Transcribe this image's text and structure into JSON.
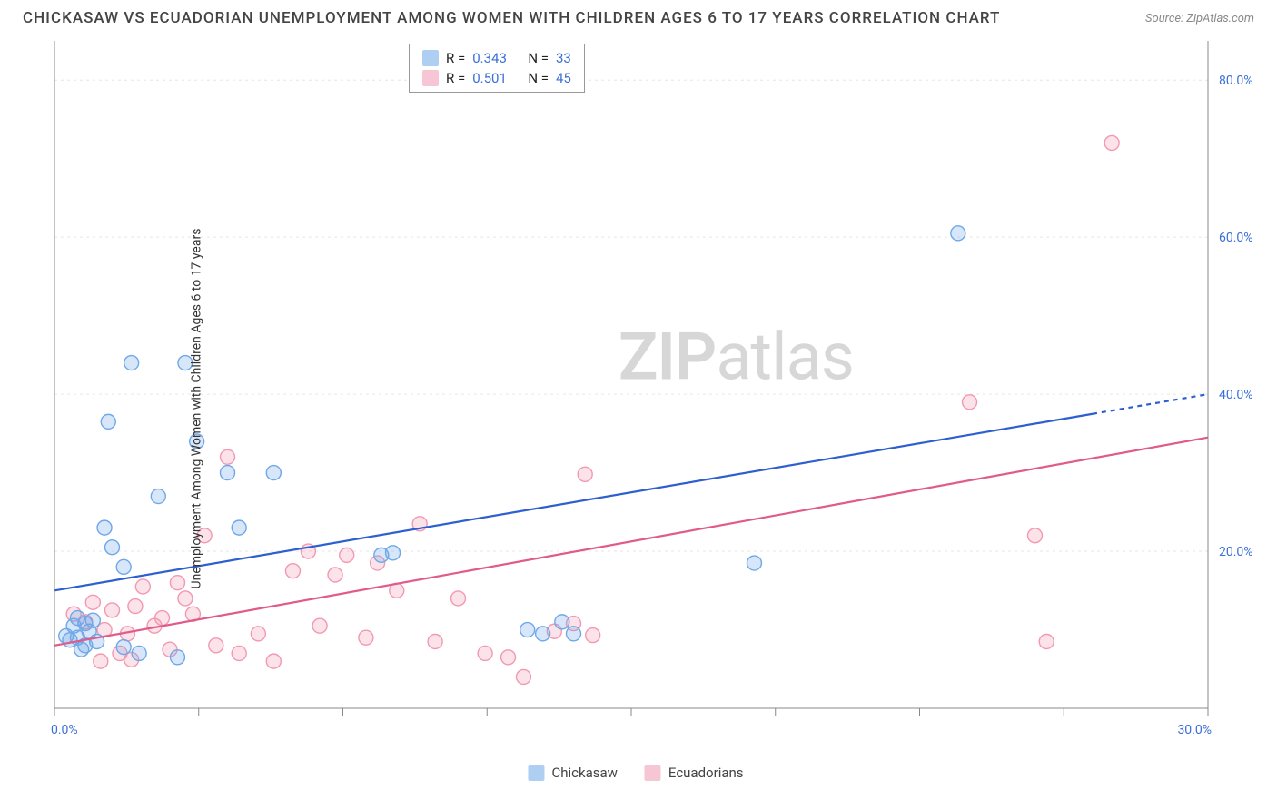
{
  "title": "CHICKASAW VS ECUADORIAN UNEMPLOYMENT AMONG WOMEN WITH CHILDREN AGES 6 TO 17 YEARS CORRELATION CHART",
  "source": "Source: ZipAtlas.com",
  "watermark_a": "ZIP",
  "watermark_b": "atlas",
  "yaxis_label": "Unemployment Among Women with Children Ages 6 to 17 years",
  "chart": {
    "type": "scatter",
    "background_color": "#ffffff",
    "xlim": [
      0,
      30
    ],
    "ylim": [
      0,
      85
    ],
    "xtick_labels": [
      "0.0%",
      "30.0%"
    ],
    "xtick_positions": [
      0,
      30
    ],
    "xtick_minor": [
      3.75,
      7.5,
      11.25,
      15,
      18.75,
      22.5,
      26.25
    ],
    "ytick_labels": [
      "20.0%",
      "40.0%",
      "60.0%",
      "80.0%"
    ],
    "ytick_positions": [
      20,
      40,
      60,
      80
    ],
    "grid_color": "#e6e6e6",
    "axis_color": "#888888",
    "tick_label_color": "#3a6fd8",
    "marker_radius": 8,
    "marker_stroke_width": 1.4,
    "fill_opacity": 0.28,
    "trend_line_width": 2.2,
    "series": [
      {
        "name": "Chickasaw",
        "color": "#6fa8e8",
        "trend_color": "#2d5fcf",
        "stats": {
          "r": "0.343",
          "n": "33"
        },
        "trend": {
          "x1": 0,
          "y1": 15,
          "x2": 27,
          "y2": 37.5,
          "dash_x1": 27,
          "dash_y1": 37.5,
          "dash_x2": 30,
          "dash_y2": 40
        },
        "points": [
          [
            0.3,
            9.2
          ],
          [
            0.4,
            8.7
          ],
          [
            0.5,
            10.5
          ],
          [
            0.6,
            9.0
          ],
          [
            0.7,
            7.5
          ],
          [
            0.8,
            10.8
          ],
          [
            0.8,
            8.0
          ],
          [
            0.9,
            9.8
          ],
          [
            1.0,
            11.2
          ],
          [
            1.1,
            8.5
          ],
          [
            1.3,
            23
          ],
          [
            1.4,
            36.5
          ],
          [
            1.5,
            20.5
          ],
          [
            1.8,
            18
          ],
          [
            2.0,
            44
          ],
          [
            2.2,
            7
          ],
          [
            2.7,
            27
          ],
          [
            3.2,
            6.5
          ],
          [
            3.4,
            44
          ],
          [
            3.7,
            34
          ],
          [
            4.5,
            30
          ],
          [
            4.8,
            23
          ],
          [
            5.7,
            30
          ],
          [
            8.5,
            19.5
          ],
          [
            8.8,
            19.8
          ],
          [
            12.3,
            10
          ],
          [
            12.7,
            9.5
          ],
          [
            13.2,
            11
          ],
          [
            13.5,
            9.5
          ],
          [
            18.2,
            18.5
          ],
          [
            23.5,
            60.5
          ],
          [
            1.8,
            7.8
          ],
          [
            0.6,
            11.5
          ]
        ]
      },
      {
        "name": "Ecuadorians",
        "color": "#f299b1",
        "trend_color": "#e05a8a",
        "stats": {
          "r": "0.501",
          "n": "45"
        },
        "trend": {
          "x1": 0,
          "y1": 8,
          "x2": 30,
          "y2": 34.5,
          "dash_x1": 30,
          "dash_y1": 34.5,
          "dash_x2": 30,
          "dash_y2": 34.5
        },
        "points": [
          [
            0.5,
            12
          ],
          [
            0.8,
            11
          ],
          [
            1.0,
            13.5
          ],
          [
            1.3,
            10
          ],
          [
            1.5,
            12.5
          ],
          [
            1.7,
            7
          ],
          [
            1.9,
            9.5
          ],
          [
            2.1,
            13
          ],
          [
            2.3,
            15.5
          ],
          [
            2.6,
            10.5
          ],
          [
            2.8,
            11.5
          ],
          [
            3.2,
            16
          ],
          [
            3.4,
            14
          ],
          [
            3.6,
            12
          ],
          [
            3.9,
            22
          ],
          [
            4.2,
            8
          ],
          [
            4.5,
            32
          ],
          [
            4.8,
            7
          ],
          [
            5.3,
            9.5
          ],
          [
            5.7,
            6
          ],
          [
            6.2,
            17.5
          ],
          [
            6.6,
            20
          ],
          [
            6.9,
            10.5
          ],
          [
            7.3,
            17
          ],
          [
            7.6,
            19.5
          ],
          [
            8.1,
            9
          ],
          [
            8.4,
            18.5
          ],
          [
            8.9,
            15
          ],
          [
            9.5,
            23.5
          ],
          [
            9.9,
            8.5
          ],
          [
            10.5,
            14
          ],
          [
            11.2,
            7
          ],
          [
            11.8,
            6.5
          ],
          [
            12.2,
            4
          ],
          [
            13.0,
            9.8
          ],
          [
            13.5,
            10.8
          ],
          [
            13.8,
            29.8
          ],
          [
            14.0,
            9.3
          ],
          [
            23.8,
            39
          ],
          [
            25.5,
            22
          ],
          [
            25.8,
            8.5
          ],
          [
            27.5,
            72
          ],
          [
            3.0,
            7.5
          ],
          [
            2.0,
            6.2
          ],
          [
            1.2,
            6.0
          ]
        ]
      }
    ]
  },
  "legend": {
    "r_label": "R =",
    "n_label": "N ="
  }
}
